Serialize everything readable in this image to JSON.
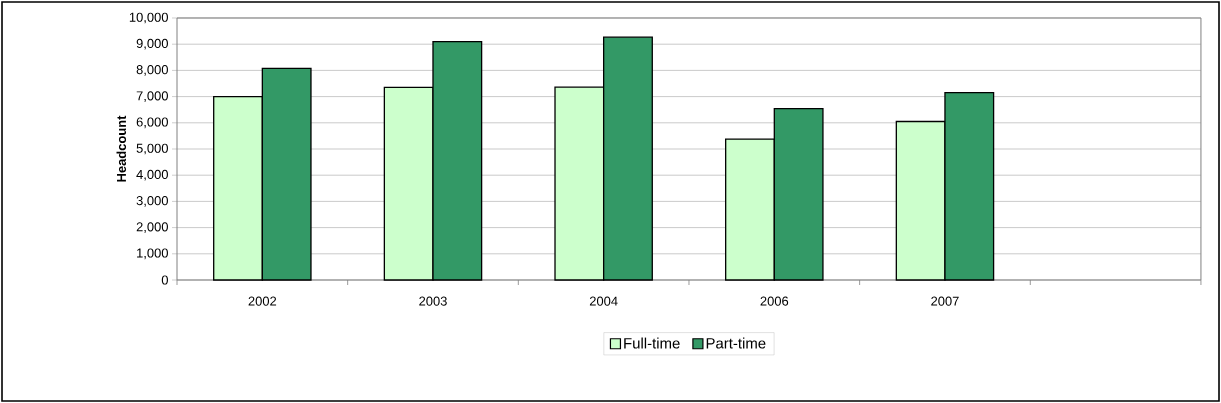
{
  "chart_data": {
    "type": "bar",
    "ylabel": "Headcount",
    "categories": [
      "2002",
      "2003",
      "2004",
      "2006",
      "2007",
      null
    ],
    "series": [
      {
        "name": "Full-time",
        "color": "#ccffcc",
        "values": [
          7000,
          7350,
          7360,
          5380,
          6050,
          null
        ]
      },
      {
        "name": "Part-time",
        "color": "#339966",
        "values": [
          8080,
          9100,
          9270,
          6540,
          7150,
          null
        ]
      }
    ],
    "ylim": [
      0,
      10000
    ],
    "yticks": [
      {
        "value": 0,
        "label": "0"
      },
      {
        "value": 1000,
        "label": "1,000"
      },
      {
        "value": 2000,
        "label": "2,000"
      },
      {
        "value": 3000,
        "label": "3,000"
      },
      {
        "value": 4000,
        "label": "4,000"
      },
      {
        "value": 5000,
        "label": "5,000"
      },
      {
        "value": 6000,
        "label": "6,000"
      },
      {
        "value": 7000,
        "label": "7,000"
      },
      {
        "value": 8000,
        "label": "8,000"
      },
      {
        "value": 9000,
        "label": "9,000"
      },
      {
        "value": 10000,
        "label": "10,000"
      }
    ],
    "grid": "y",
    "legend": "bottom"
  }
}
